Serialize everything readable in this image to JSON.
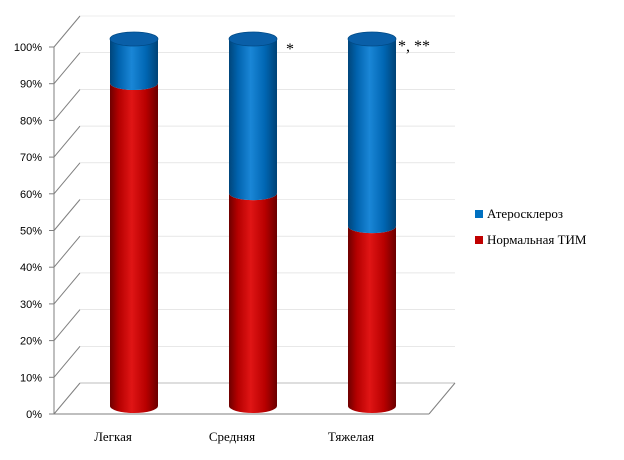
{
  "chart_data": {
    "type": "bar",
    "stacked": true,
    "percent": true,
    "style": "3d-cylinder",
    "categories": [
      "Легкая",
      "Средняя",
      "Тяжелая"
    ],
    "series": [
      {
        "name": "Нормальная ТИМ",
        "values": [
          88,
          58,
          49
        ]
      },
      {
        "name": "Атеросклероз",
        "values": [
          12,
          42,
          51
        ]
      }
    ],
    "yticks": [
      "0%",
      "10%",
      "20%",
      "30%",
      "40%",
      "50%",
      "60%",
      "70%",
      "80%",
      "90%",
      "100%"
    ],
    "ylim": [
      0,
      100
    ],
    "annotations": [
      "",
      "*",
      "*, **"
    ],
    "grid": true,
    "legend": "right",
    "title": "",
    "xlabel": "",
    "ylabel": ""
  },
  "colors": {
    "series_1": "#c00000",
    "series_2": "#0070c0",
    "grid": "#7f7f7f"
  }
}
